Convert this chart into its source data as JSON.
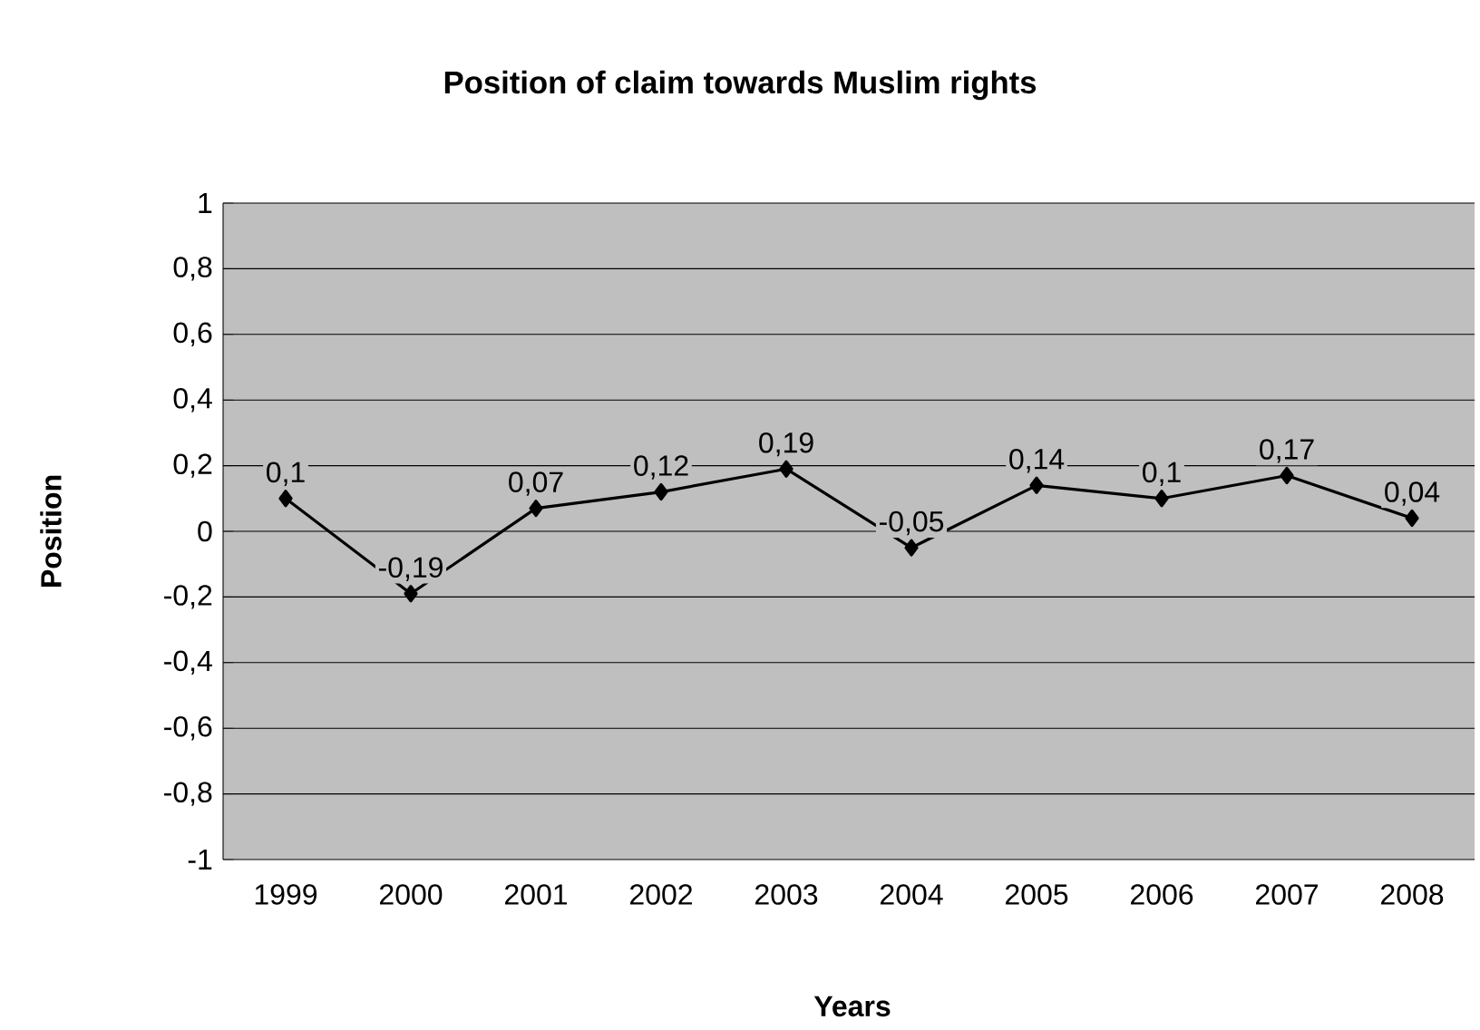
{
  "chart_data": {
    "type": "line",
    "title": "Position of claim towards Muslim rights",
    "xlabel": "Years",
    "ylabel": "Position",
    "categories": [
      "1999",
      "2000",
      "2001",
      "2002",
      "2003",
      "2004",
      "2005",
      "2006",
      "2007",
      "2008"
    ],
    "series": [
      {
        "color": "#000000",
        "values": [
          0.1,
          -0.19,
          0.07,
          0.12,
          0.19,
          -0.05,
          0.14,
          0.1,
          0.17,
          0.04
        ],
        "value_labels": [
          "0,1",
          "-0,19",
          "0,07",
          "0,12",
          "0,19",
          "-0,05",
          "0,14",
          "0,1",
          "0,17",
          "0,04"
        ]
      }
    ],
    "ylim": [
      -1,
      1
    ],
    "yticks": [
      {
        "value": -1,
        "label": "-1"
      },
      {
        "value": -0.8,
        "label": "-0,8"
      },
      {
        "value": -0.6,
        "label": "-0,6"
      },
      {
        "value": -0.4,
        "label": "-0,4"
      },
      {
        "value": -0.2,
        "label": "-0,2"
      },
      0,
      {
        "value": 0.2,
        "label": "0,2"
      },
      {
        "value": 0.4,
        "label": "0,4"
      },
      {
        "value": 0.6,
        "label": "0,6"
      },
      {
        "value": 0.8,
        "label": "0,8"
      },
      1
    ],
    "grid": "y",
    "marker": "diamond",
    "line_style": "solid",
    "legend": false
  }
}
